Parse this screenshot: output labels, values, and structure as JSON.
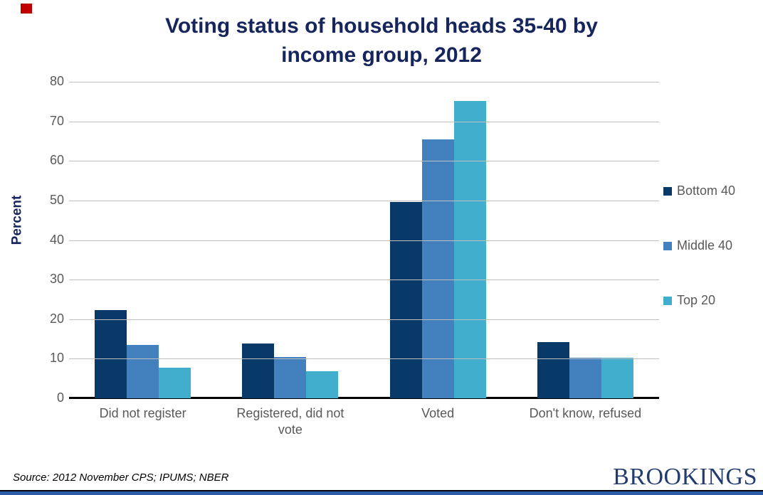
{
  "page": {
    "marker_color": "#c00000"
  },
  "chart_data": {
    "type": "bar",
    "title": "Voting status of household heads 35-40 by income group, 2012",
    "title_lines": [
      "Voting status of household heads 35-40 by",
      "income group, 2012"
    ],
    "title_color": "#16265c",
    "xlabel": "",
    "ylabel": "Percent",
    "ylim": [
      0,
      80
    ],
    "yticks": [
      0,
      10,
      20,
      30,
      40,
      50,
      60,
      70,
      80
    ],
    "grid": true,
    "gridline_color": "#bfbfbf",
    "axis_text_color": "#595959",
    "legend_position": "right",
    "categories": [
      "Did not register",
      "Registered, did not vote",
      "Voted",
      "Don't know, refused"
    ],
    "category_label_lines": [
      [
        "Did not register"
      ],
      [
        "Registered, did not",
        "vote"
      ],
      [
        "Voted"
      ],
      [
        "Don't know, refused"
      ]
    ],
    "series": [
      {
        "name": "Bottom 40",
        "color": "#083968",
        "values": [
          22.3,
          13.9,
          49.6,
          14.2
        ]
      },
      {
        "name": "Middle 40",
        "color": "#4280be",
        "values": [
          13.5,
          10.4,
          65.5,
          10.2
        ]
      },
      {
        "name": "Top 20",
        "color": "#42aece",
        "values": [
          7.7,
          6.8,
          75.2,
          10.2
        ]
      }
    ]
  },
  "footer": {
    "source": "Source: 2012 November CPS; IPUMS; NBER",
    "brand": "BROOKINGS",
    "brand_color": "#233c6e",
    "bar_color": "#2e5ca6"
  }
}
